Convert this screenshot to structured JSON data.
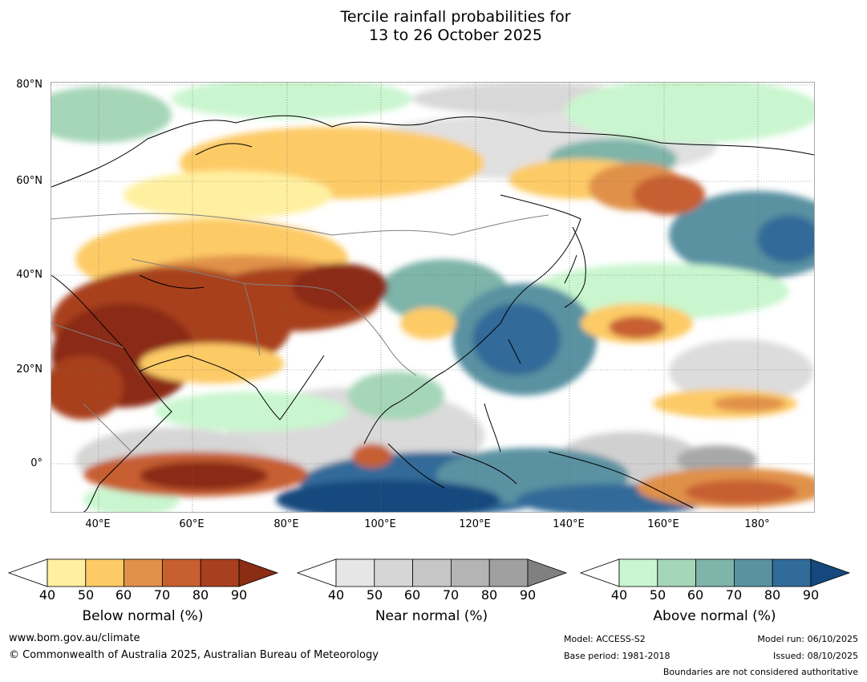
{
  "title": {
    "line1": "Tercile rainfall probabilities for",
    "line2": "13 to 26 October 2025"
  },
  "axes": {
    "latitudes": [
      "80°N",
      "60°N",
      "40°N",
      "20°N",
      "0°"
    ],
    "longitudes": [
      "40°E",
      "60°E",
      "80°E",
      "100°E",
      "120°E",
      "140°E",
      "160°E",
      "180°"
    ]
  },
  "colorbars": [
    {
      "label": "Below normal (%)",
      "ticks": [
        "40",
        "50",
        "60",
        "70",
        "80",
        "90"
      ],
      "colors": [
        "#fff0a0",
        "#fdcb66",
        "#e0914a",
        "#c75f31",
        "#a8401f",
        "#8b2c14"
      ]
    },
    {
      "label": "Near normal (%)",
      "ticks": [
        "40",
        "50",
        "60",
        "70",
        "80",
        "90"
      ],
      "colors": [
        "#e6e6e6",
        "#d6d6d6",
        "#c6c6c6",
        "#b4b4b4",
        "#a0a0a0",
        "#808080"
      ]
    },
    {
      "label": "Above normal (%)",
      "ticks": [
        "40",
        "50",
        "60",
        "70",
        "80",
        "90"
      ],
      "colors": [
        "#c9f6cf",
        "#a5d6b7",
        "#7eb4a9",
        "#5a92a2",
        "#316b99",
        "#14487e"
      ]
    }
  ],
  "footer": {
    "url": "www.bom.gov.au/climate",
    "copyright": "© Commonwealth of Australia 2025, Australian Bureau of Meteorology",
    "model": "Model: ACCESS-S2",
    "base_period": "Base period: 1981-2018",
    "model_run": "Model run: 06/10/2025",
    "issued": "Issued: 08/10/2025",
    "disclaimer": "Boundaries are not considered authoritative"
  }
}
